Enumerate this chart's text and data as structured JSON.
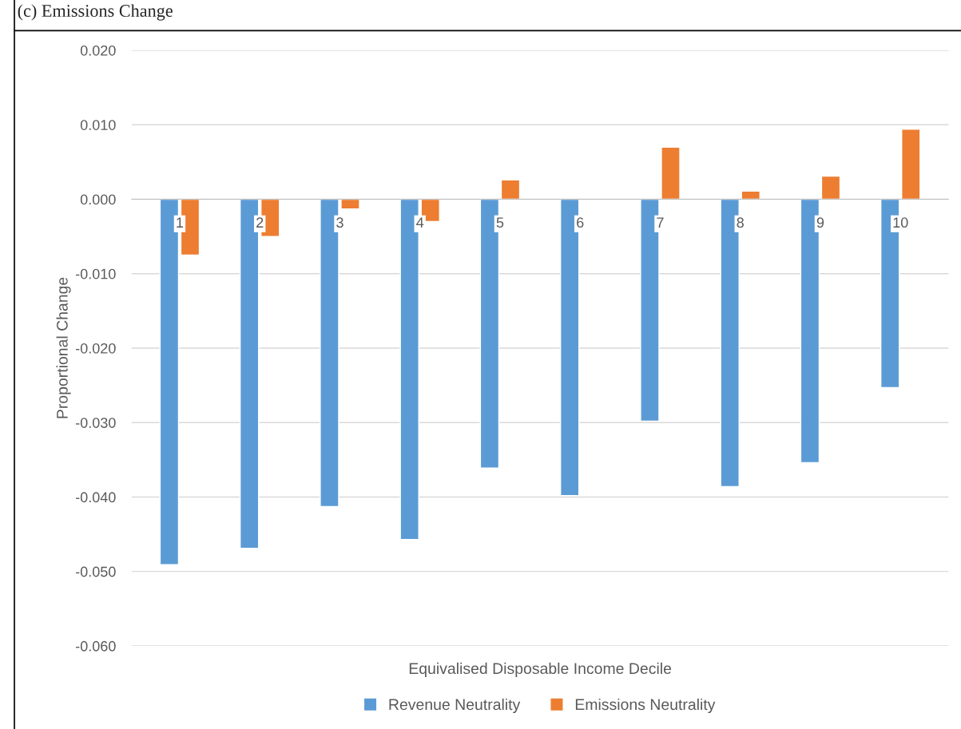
{
  "chart_data": {
    "type": "bar",
    "title": "(c) Emissions Change",
    "xlabel": "Equivalised Disposable Income Decile",
    "ylabel": "Proportional Change",
    "categories": [
      "1",
      "2",
      "3",
      "4",
      "5",
      "6",
      "7",
      "8",
      "9",
      "10"
    ],
    "series": [
      {
        "name": "Revenue Neutrality",
        "color": "#5b9bd5",
        "values": [
          -0.0491,
          -0.0469,
          -0.0413,
          -0.0457,
          -0.0361,
          -0.0398,
          -0.0298,
          -0.0386,
          -0.0354,
          -0.0253
        ]
      },
      {
        "name": "Emissions Neutrality",
        "color": "#ed7d31",
        "values": [
          -0.0075,
          -0.005,
          -0.0013,
          -0.003,
          0.0026,
          null,
          0.007,
          0.0011,
          0.0031,
          0.0094
        ]
      }
    ],
    "ylim": [
      -0.06,
      0.02
    ],
    "yticks": [
      {
        "value": -0.06,
        "label": "-0.060"
      },
      {
        "value": -0.05,
        "label": "-0.050"
      },
      {
        "value": -0.04,
        "label": "-0.040"
      },
      {
        "value": -0.03,
        "label": "-0.030"
      },
      {
        "value": -0.02,
        "label": "-0.020"
      },
      {
        "value": -0.01,
        "label": "-0.010"
      },
      {
        "value": 0,
        "label": "0.000"
      },
      {
        "value": 0.01,
        "label": "0.010"
      },
      {
        "value": 0.02,
        "label": "0.020"
      }
    ],
    "grid": "y",
    "legend": "bottom"
  }
}
